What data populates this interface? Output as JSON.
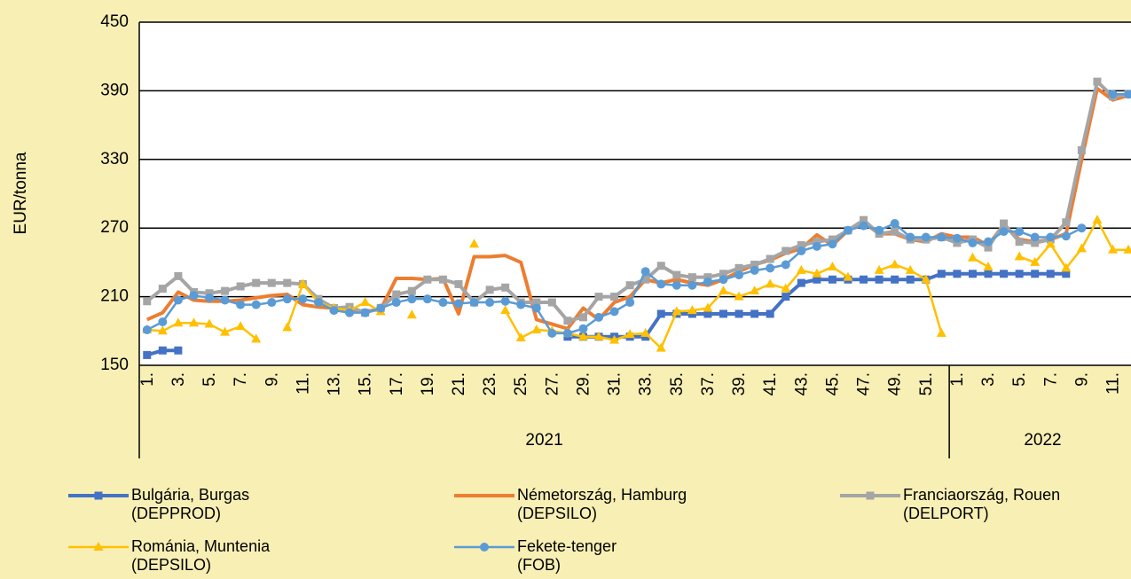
{
  "chart_data": {
    "type": "line",
    "y_label": "EUR/tonna",
    "categories": [
      "1.",
      null,
      "3.",
      null,
      "5.",
      null,
      "7.",
      null,
      "9.",
      null,
      "11.",
      null,
      "13.",
      null,
      "15.",
      null,
      "17.",
      null,
      "19.",
      null,
      "21.",
      null,
      "23.",
      null,
      "25.",
      null,
      "27.",
      null,
      "29.",
      null,
      "31.",
      null,
      "33.",
      null,
      "35.",
      null,
      "37.",
      null,
      "39.",
      null,
      "41.",
      null,
      "43.",
      null,
      "45.",
      null,
      "47.",
      null,
      "49.",
      null,
      "51.",
      null,
      "1.",
      null,
      "3.",
      null,
      "5.",
      null,
      "7.",
      null,
      "9.",
      null,
      "11.",
      null
    ],
    "groups": [
      "2021",
      "2022"
    ],
    "ylim": [
      150,
      450
    ],
    "yticks": [
      150,
      210,
      270,
      330,
      390,
      450
    ],
    "grid": true,
    "series": [
      {
        "name": "Bulgária, Burgas\n(DEPPROD)",
        "color": "#4472c4",
        "marker": "square",
        "width": 4,
        "values": [
          159,
          163,
          163,
          null,
          null,
          null,
          null,
          null,
          null,
          null,
          null,
          null,
          null,
          null,
          null,
          null,
          null,
          null,
          null,
          null,
          null,
          null,
          null,
          null,
          null,
          null,
          null,
          175,
          175,
          175,
          175,
          175,
          175,
          195,
          195,
          195,
          195,
          195,
          195,
          195,
          195,
          210,
          222,
          225,
          225,
          225,
          225,
          225,
          225,
          225,
          225,
          230,
          230,
          230,
          230,
          230,
          230,
          230,
          230,
          230,
          null,
          null,
          null,
          null
        ]
      },
      {
        "name": "Németország, Hamburg\n(DEPSILO)",
        "color": "#ed7d31",
        "marker": "none",
        "width": 4,
        "values": [
          190,
          196,
          214,
          207,
          206,
          206,
          207,
          209,
          211,
          212,
          203,
          201,
          200,
          198,
          197,
          199,
          226,
          226,
          225,
          226,
          195,
          245,
          245,
          246,
          240,
          190,
          186,
          182,
          200,
          190,
          205,
          210,
          225,
          222,
          225,
          222,
          220,
          225,
          232,
          238,
          242,
          248,
          252,
          264,
          255,
          268,
          275,
          265,
          265,
          260,
          258,
          265,
          262,
          262,
          255,
          273,
          260,
          258,
          260,
          265,
          330,
          392,
          382,
          386
        ]
      },
      {
        "name": "Franciaország, Rouen\n(DELPORT)",
        "color": "#a5a5a5",
        "marker": "square",
        "width": 4,
        "values": [
          206,
          217,
          228,
          214,
          213,
          215,
          219,
          222,
          222,
          222,
          221,
          208,
          200,
          201,
          196,
          200,
          212,
          215,
          225,
          225,
          221,
          205,
          216,
          218,
          205,
          205,
          205,
          189,
          192,
          210,
          210,
          220,
          225,
          237,
          229,
          227,
          227,
          230,
          235,
          238,
          243,
          250,
          255,
          258,
          260,
          268,
          277,
          265,
          267,
          260,
          260,
          262,
          257,
          260,
          253,
          274,
          258,
          257,
          260,
          275,
          338,
          398,
          385,
          387
        ]
      },
      {
        "name": "Románia, Muntenia\n(DEPSILO)",
        "color": "#ffc000",
        "marker": "triangle",
        "width": 2.5,
        "values": [
          181,
          180,
          187,
          187,
          186,
          179,
          184,
          173,
          null,
          183,
          221,
          205,
          200,
          198,
          205,
          197,
          null,
          194,
          null,
          null,
          null,
          256,
          null,
          198,
          174,
          181,
          180,
          178,
          175,
          175,
          172,
          177,
          178,
          165,
          197,
          198,
          200,
          215,
          210,
          215,
          221,
          217,
          233,
          230,
          236,
          227,
          null,
          233,
          238,
          233,
          225,
          178,
          null,
          244,
          236,
          null,
          245,
          240,
          256,
          235,
          252,
          277,
          251,
          251
        ]
      },
      {
        "name": "Fekete-tenger\n(FOB)",
        "color": "#5b9bd5",
        "marker": "circle",
        "width": 2.5,
        "values": [
          181,
          188,
          207,
          211,
          209,
          207,
          203,
          203,
          205,
          208,
          208,
          205,
          198,
          196,
          196,
          200,
          205,
          208,
          208,
          205,
          204,
          205,
          205,
          206,
          203,
          200,
          178,
          178,
          182,
          192,
          197,
          205,
          232,
          221,
          220,
          220,
          223,
          225,
          229,
          233,
          235,
          238,
          250,
          254,
          256,
          268,
          272,
          268,
          274,
          262,
          262,
          262,
          261,
          257,
          258,
          267,
          267,
          262,
          262,
          263,
          270,
          null,
          387,
          387
        ]
      }
    ]
  }
}
